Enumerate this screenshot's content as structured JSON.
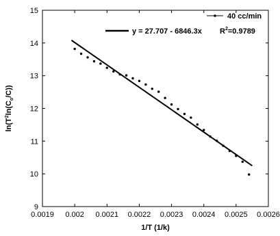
{
  "chart_data": {
    "type": "scatter",
    "title": "",
    "xlabel": "1/T (1/k)",
    "ylabel_parts": {
      "a": "ln(T",
      "a_sup": "2",
      "b": "ln(C",
      "b_sub": "o",
      "c": "/C))"
    },
    "xlim": [
      0.0019,
      0.0026
    ],
    "ylim": [
      9,
      15
    ],
    "x_ticks": [
      0.0019,
      0.002,
      0.0021,
      0.0022,
      0.0023,
      0.0024,
      0.0025,
      0.0026
    ],
    "x_tick_labels": [
      "0.0019",
      "0.002",
      "0.0021",
      "0.0022",
      "0.0023",
      "0.0024",
      "0.0025",
      "0.0026"
    ],
    "y_ticks": [
      9,
      10,
      11,
      12,
      13,
      14,
      15
    ],
    "y_tick_labels": [
      "9",
      "10",
      "11",
      "12",
      "13",
      "14",
      "15"
    ],
    "grid": false,
    "legend_position": "top-right",
    "series": [
      {
        "name": "40 cc/min",
        "marker": "dot",
        "color": "#000000",
        "x": [
          0.002,
          0.00202,
          0.00204,
          0.00206,
          0.00208,
          0.0021,
          0.00212,
          0.00214,
          0.00216,
          0.00218,
          0.0022,
          0.00222,
          0.00224,
          0.00226,
          0.00228,
          0.0023,
          0.00232,
          0.00234,
          0.00236,
          0.00238,
          0.0024,
          0.00242,
          0.00244,
          0.00246,
          0.00248,
          0.0025,
          0.00252,
          0.00254
        ],
        "y": [
          13.82,
          13.67,
          13.56,
          13.44,
          13.37,
          13.24,
          13.13,
          13.04,
          13.01,
          12.92,
          12.84,
          12.73,
          12.6,
          12.51,
          12.32,
          12.12,
          11.98,
          11.83,
          11.72,
          11.51,
          11.34,
          11.14,
          11.01,
          10.86,
          10.7,
          10.55,
          10.37,
          9.98
        ]
      }
    ],
    "fit": {
      "equation_label": "y = 27.707 - 6846.3x",
      "r2_label_main": "R",
      "r2_label_sup": "2",
      "r2_label_value": "=0.9789",
      "intercept": 27.707,
      "slope": -6846.3,
      "x_range": [
        0.00199,
        0.00255
      ],
      "color": "#000000"
    }
  }
}
